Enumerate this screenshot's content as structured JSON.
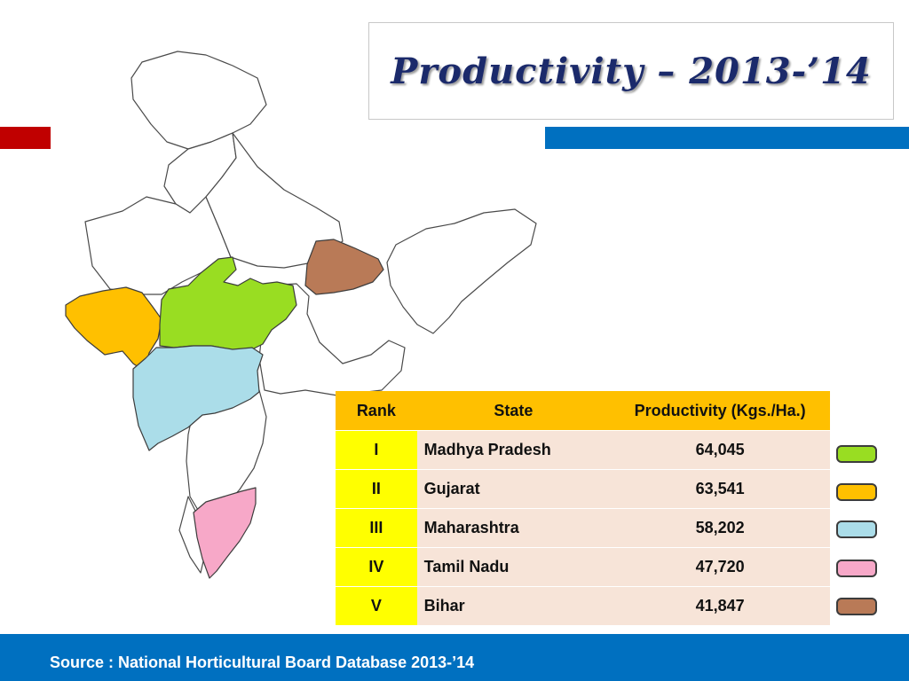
{
  "title": "Productivity – 2013-’14",
  "table": {
    "headers": {
      "rank": "Rank",
      "state": "State",
      "productivity": "Productivity (Kgs./Ha.)"
    },
    "rows": [
      {
        "rank": "I",
        "state": "Madhya Pradesh",
        "productivity": "64,045",
        "color": "#99dd22"
      },
      {
        "rank": "II",
        "state": "Gujarat",
        "productivity": "63,541",
        "color": "#ffc000"
      },
      {
        "rank": "III",
        "state": "Maharashtra",
        "productivity": "58,202",
        "color": "#abdde9"
      },
      {
        "rank": "IV",
        "state": "Tamil Nadu",
        "productivity": "47,720",
        "color": "#f7a8c8"
      },
      {
        "rank": "V",
        "state": "Bihar",
        "productivity": "41,847",
        "color": "#b97a57"
      }
    ]
  },
  "source": "Source : National Horticultural Board Database 2013-’14",
  "colors": {
    "title": "#1b2a6b",
    "accent_red": "#c00000",
    "accent_blue": "#0070c0",
    "header": "#ffc000",
    "rank_cell": "#ffff00",
    "data_cell": "#f7e4d8",
    "map_outline": "#4a4a4a"
  }
}
